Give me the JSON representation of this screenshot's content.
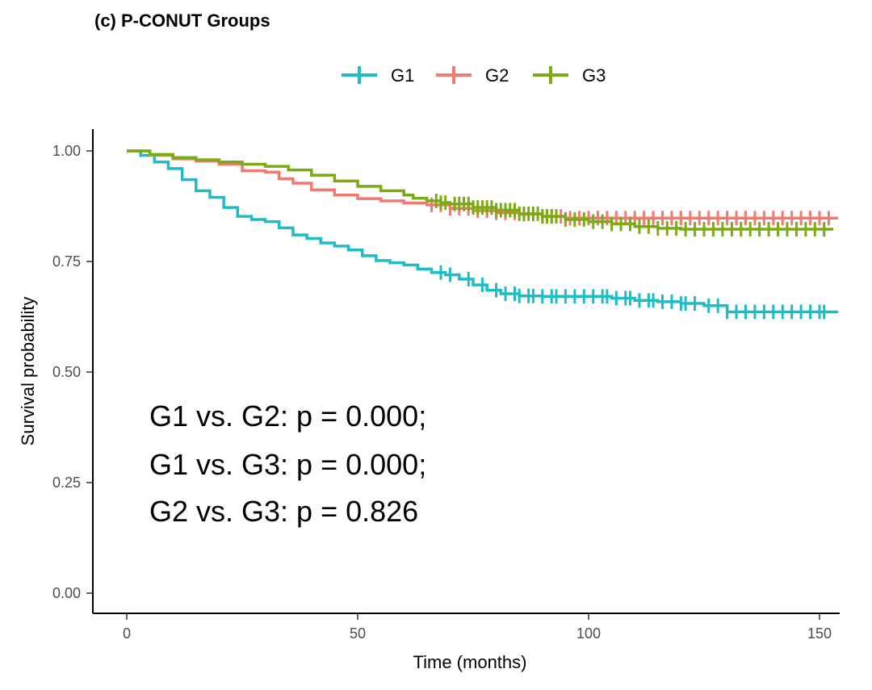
{
  "chart_data": {
    "type": "line",
    "title": "(c) P-CONUT Groups",
    "xlabel": "Time (months)",
    "ylabel": "Survival probability",
    "xlim": [
      0,
      155
    ],
    "ylim": [
      0,
      1.05
    ],
    "xticks": [
      0,
      50,
      100,
      150
    ],
    "yticks": [
      0.0,
      0.25,
      0.5,
      0.75,
      1.0
    ],
    "grid": false,
    "legend_position": "top",
    "series": [
      {
        "name": "G1",
        "color": "#1ebcc4",
        "x": [
          0,
          3,
          6,
          9,
          12,
          15,
          18,
          21,
          24,
          27,
          30,
          33,
          36,
          39,
          42,
          45,
          48,
          51,
          54,
          57,
          60,
          63,
          66,
          69,
          72,
          75,
          78,
          81,
          85,
          90,
          95,
          100,
          105,
          110,
          115,
          120,
          125,
          130,
          135,
          140,
          145,
          150,
          154
        ],
        "y": [
          1.0,
          0.99,
          0.975,
          0.96,
          0.935,
          0.91,
          0.895,
          0.872,
          0.852,
          0.845,
          0.84,
          0.826,
          0.81,
          0.802,
          0.792,
          0.785,
          0.776,
          0.763,
          0.752,
          0.747,
          0.742,
          0.733,
          0.725,
          0.72,
          0.71,
          0.697,
          0.685,
          0.677,
          0.672,
          0.671,
          0.671,
          0.671,
          0.667,
          0.662,
          0.659,
          0.655,
          0.65,
          0.636,
          0.636,
          0.636,
          0.636,
          0.636,
          0.636
        ],
        "censor_x": [
          68,
          70,
          74,
          77,
          80,
          82,
          84,
          85,
          87,
          88,
          90,
          92,
          93,
          95,
          97,
          99,
          101,
          103,
          104,
          106,
          108,
          109,
          111,
          113,
          114,
          116,
          118,
          120,
          121,
          123,
          126,
          128,
          130,
          132,
          134,
          136,
          138,
          140,
          142,
          144,
          146,
          148,
          150,
          151
        ]
      },
      {
        "name": "G2",
        "color": "#f07a72",
        "x": [
          0,
          5,
          10,
          15,
          20,
          25,
          30,
          33,
          36,
          40,
          45,
          50,
          55,
          60,
          65,
          70,
          75,
          80,
          85,
          90,
          95,
          100,
          105,
          110,
          120,
          130,
          140,
          150,
          154
        ],
        "y": [
          1.0,
          0.99,
          0.982,
          0.977,
          0.97,
          0.955,
          0.952,
          0.937,
          0.927,
          0.912,
          0.9,
          0.892,
          0.887,
          0.882,
          0.878,
          0.87,
          0.865,
          0.86,
          0.857,
          0.852,
          0.848,
          0.848,
          0.848,
          0.848,
          0.848,
          0.848,
          0.848,
          0.848,
          0.848
        ],
        "censor_x": [
          66,
          68,
          70,
          72,
          74,
          76,
          78,
          80,
          82,
          84,
          86,
          88,
          90,
          92,
          94,
          96,
          98,
          100,
          102,
          104,
          106,
          108,
          110,
          112,
          114,
          116,
          118,
          120,
          122,
          124,
          126,
          128,
          130,
          132,
          134,
          136,
          138,
          140,
          142,
          144,
          146,
          148,
          150,
          152
        ]
      },
      {
        "name": "G3",
        "color": "#7aab12",
        "x": [
          0,
          5,
          10,
          15,
          20,
          25,
          30,
          35,
          40,
          45,
          50,
          55,
          60,
          62,
          65,
          68,
          70,
          75,
          80,
          85,
          90,
          95,
          100,
          105,
          110,
          115,
          120,
          130,
          140,
          150,
          153
        ],
        "y": [
          1.0,
          0.992,
          0.985,
          0.98,
          0.975,
          0.97,
          0.965,
          0.957,
          0.945,
          0.932,
          0.92,
          0.91,
          0.9,
          0.893,
          0.887,
          0.883,
          0.88,
          0.872,
          0.866,
          0.858,
          0.852,
          0.845,
          0.84,
          0.835,
          0.829,
          0.825,
          0.823,
          0.823,
          0.823,
          0.823,
          0.823
        ],
        "censor_x": [
          67,
          68,
          69,
          71,
          72,
          73,
          74,
          75,
          76,
          77,
          78,
          79,
          80,
          81,
          82,
          83,
          84,
          85,
          86,
          87,
          88,
          89,
          90,
          91,
          92,
          93,
          95,
          97,
          99,
          101,
          103,
          105,
          107,
          109,
          111,
          113,
          115,
          117,
          119,
          121,
          123,
          125,
          127,
          129,
          131,
          133,
          135,
          137,
          139,
          141,
          143,
          145,
          147,
          149,
          151
        ]
      }
    ],
    "annotations": [
      "G1 vs. G2: p = 0.000;",
      "G1 vs. G3: p = 0.000;",
      "G2 vs. G3: p = 0.826"
    ]
  }
}
